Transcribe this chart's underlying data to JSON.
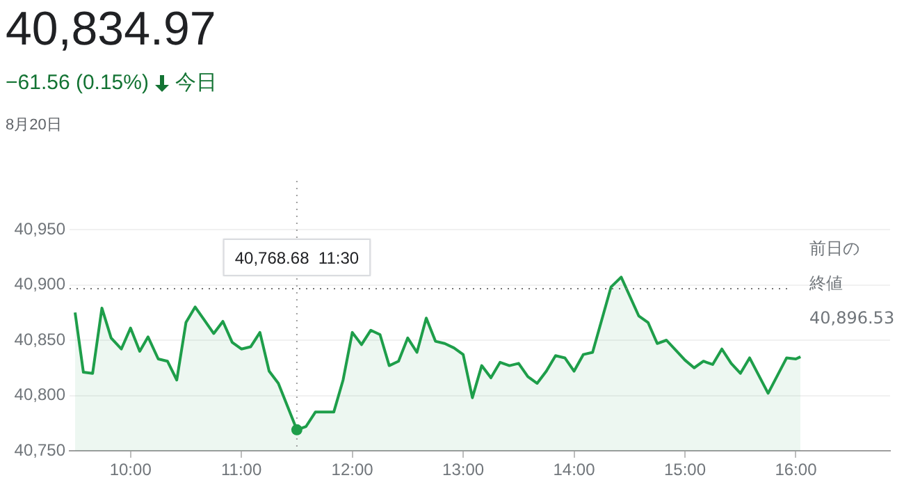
{
  "chart_data": {
    "type": "area",
    "title": "40,834.97",
    "subtitle": "−61.56 (0.15%)",
    "annotations": [
      "今日",
      "8月20日",
      "40,768.68  11:30"
    ],
    "x": [
      9.5,
      9.575,
      9.658,
      9.742,
      9.825,
      9.917,
      10.0,
      10.083,
      10.158,
      10.25,
      10.333,
      10.417,
      10.5,
      10.583,
      10.667,
      10.75,
      10.833,
      10.917,
      11.0,
      11.083,
      11.167,
      11.25,
      11.333,
      11.5,
      11.583,
      11.667,
      11.833,
      11.917,
      12.0,
      12.083,
      12.167,
      12.25,
      12.333,
      12.417,
      12.5,
      12.583,
      12.667,
      12.75,
      12.833,
      12.917,
      13.0,
      13.083,
      13.167,
      13.25,
      13.333,
      13.417,
      13.5,
      13.583,
      13.667,
      13.75,
      13.833,
      13.917,
      14.0,
      14.083,
      14.167,
      14.333,
      14.425,
      14.583,
      14.667,
      14.75,
      14.833,
      14.917,
      15.0,
      15.083,
      15.167,
      15.25,
      15.333,
      15.417,
      15.5,
      15.583,
      15.75,
      15.917,
      16.0,
      16.042
    ],
    "series": [
      {
        "color": "#1e9e4a",
        "values": [
          40875,
          40821,
          40820,
          40879,
          40852,
          40842,
          40861,
          40840,
          40853,
          40833,
          40831,
          40814,
          40866,
          40880,
          40868,
          40856,
          40867,
          40848,
          40842,
          40844,
          40857,
          40822,
          40811,
          40769,
          40772,
          40785,
          40785,
          40814,
          40857,
          40846,
          40859,
          40855,
          40827,
          40831,
          40852,
          40839,
          40870,
          40849,
          40847,
          40843,
          40837,
          40798,
          40827,
          40816,
          40830,
          40827,
          40829,
          40817,
          40811,
          40822,
          40836,
          40834,
          40822,
          40837,
          40839,
          40898,
          40907,
          40872,
          40866,
          40847,
          40850,
          40841,
          40832,
          40825,
          40831,
          40828,
          40842,
          40829,
          40820,
          40834,
          40802,
          40834,
          40833,
          40835
        ]
      }
    ],
    "xlim": [
      9.45,
      16.85
    ],
    "ylim": [
      40750,
      40950
    ],
    "xticks": [
      {
        "value": 10,
        "label": "10:00"
      },
      {
        "value": 11,
        "label": "11:00"
      },
      {
        "value": 12,
        "label": "12:00"
      },
      {
        "value": 13,
        "label": "13:00"
      },
      {
        "value": 14,
        "label": "14:00"
      },
      {
        "value": 15,
        "label": "15:00"
      },
      {
        "value": 16,
        "label": "16:00"
      }
    ],
    "yticks": [
      {
        "value": 40750,
        "label": "40,750"
      },
      {
        "value": 40800,
        "label": "40,800"
      },
      {
        "value": 40850,
        "label": "40,850"
      },
      {
        "value": 40900,
        "label": "40,900"
      },
      {
        "value": 40950,
        "label": "40,950"
      }
    ],
    "ref_lines": [
      {
        "axis": "y",
        "value": 40896.53,
        "label": "前日の終値 40,896.53",
        "line_style": "dotted",
        "color": "#757575"
      },
      {
        "axis": "x",
        "value": 11.5,
        "line_style": "dotted",
        "color": "#9e9e9e"
      }
    ],
    "grid": "y",
    "legend": false,
    "marker": "none",
    "line_style": "solid"
  }
}
